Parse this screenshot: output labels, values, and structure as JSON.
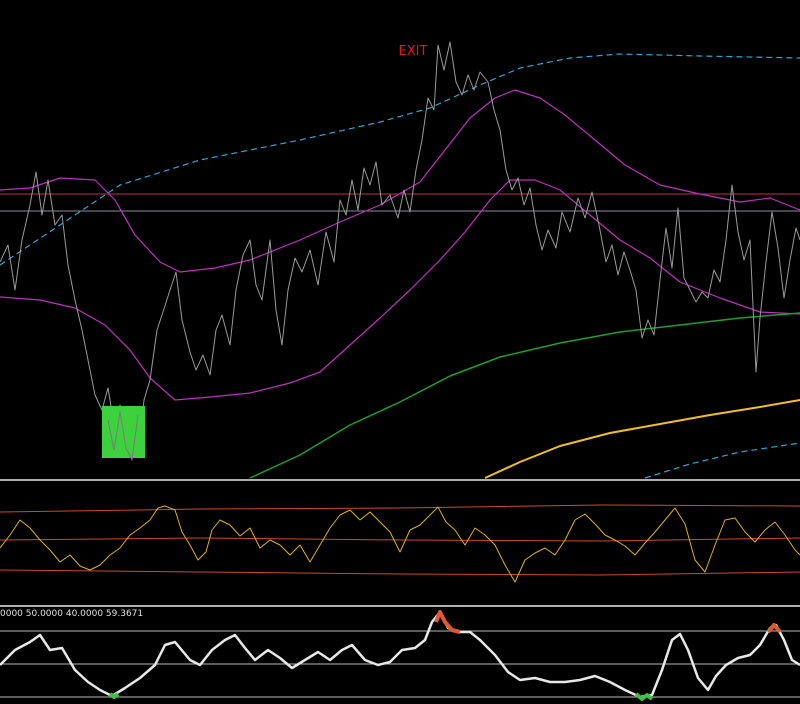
{
  "main_panel": {
    "signal_label": "EXIT"
  },
  "oscillator_panel": {
    "legend": "0000 50.0000 40.0000 59.3671"
  }
}
